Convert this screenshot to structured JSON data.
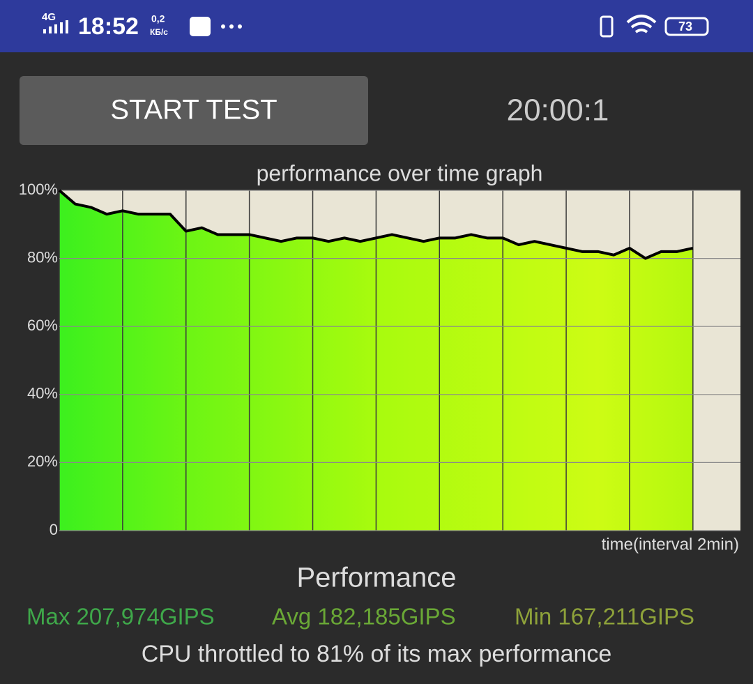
{
  "status_bar": {
    "network": "4G",
    "time": "18:52",
    "speed": "0,2",
    "speed_unit": "КБ/с",
    "battery": "73"
  },
  "controls": {
    "button": "START TEST",
    "timer": "20:00:1"
  },
  "chart_data": {
    "type": "area",
    "title": "performance over time graph",
    "x_label": "time(interval 2min)",
    "x": [
      0,
      0.5,
      1,
      1.5,
      2,
      2.5,
      3,
      3.5,
      4,
      4.5,
      5,
      5.5,
      6,
      6.5,
      7,
      7.5,
      8,
      8.5,
      9,
      9.5,
      10,
      10.5,
      11,
      11.5,
      12,
      12.5,
      13,
      13.5,
      14,
      14.5,
      15,
      15.5,
      16,
      16.5,
      17,
      17.5,
      18,
      18.5,
      19,
      19.5,
      20
    ],
    "values": [
      100,
      96,
      95,
      93,
      94,
      93,
      93,
      93,
      88,
      89,
      87,
      87,
      87,
      86,
      85,
      86,
      86,
      85,
      86,
      85,
      86,
      87,
      86,
      85,
      86,
      86,
      87,
      86,
      86,
      84,
      85,
      84,
      83,
      82,
      82,
      81,
      83,
      80,
      82,
      82,
      83
    ],
    "color": "#000000",
    "xlim": [
      0,
      21.5
    ],
    "xticks": [
      0,
      2,
      4,
      6,
      8,
      10,
      12,
      14,
      16,
      18,
      20
    ],
    "ylim": [
      0,
      100
    ],
    "yticks": [
      0,
      {
        "value": 20,
        "label": "20%"
      },
      {
        "value": 40,
        "label": "40%"
      },
      {
        "value": 60,
        "label": "60%"
      },
      {
        "value": 80,
        "label": "80%"
      },
      {
        "value": 100,
        "label": "100%"
      }
    ],
    "grid": true
  },
  "stats": {
    "heading": "Performance",
    "max": "Max 207,974GIPS",
    "avg": "Avg 182,185GIPS",
    "min": "Min 167,211GIPS",
    "summary": "CPU throttled to 81% of its max performance"
  }
}
